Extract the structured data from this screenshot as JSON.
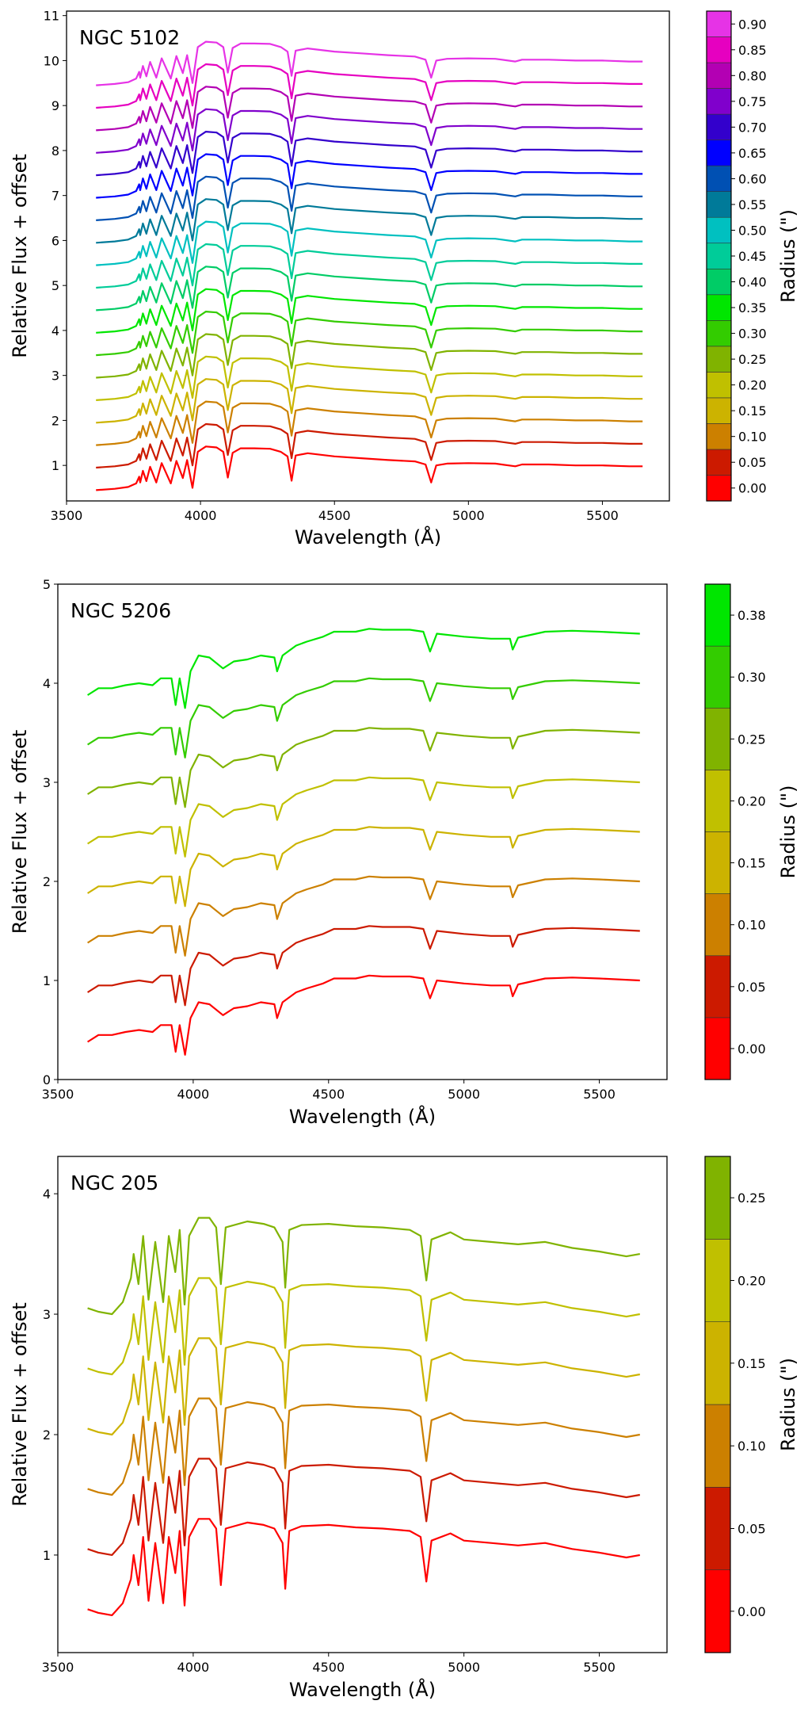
{
  "chart_data": [
    {
      "type": "line",
      "title": "NGC 5102",
      "xlabel": "Wavelength (Å)",
      "ylabel": "Relative Flux + offset",
      "colorbar_label": "Radius (\")",
      "xlim": [
        3500,
        5750
      ],
      "ylim": [
        0.21,
        11.1
      ],
      "xticks": [
        "3500",
        "4000",
        "4500",
        "5000",
        "5500"
      ],
      "yticks": [
        "1",
        "2",
        "3",
        "4",
        "5",
        "6",
        "7",
        "8",
        "9",
        "10",
        "11"
      ],
      "grid": false,
      "template": {
        "x": [
          3610,
          3680,
          3730,
          3760,
          3771,
          3775,
          3785,
          3798,
          3812,
          3835,
          3855,
          3889,
          3910,
          3934,
          3950,
          3970,
          3990,
          4020,
          4060,
          4085,
          4102,
          4120,
          4150,
          4200,
          4260,
          4300,
          4325,
          4340,
          4355,
          4400,
          4500,
          4600,
          4700,
          4800,
          4840,
          4861,
          4880,
          4920,
          5000,
          5100,
          5175,
          5200,
          5300,
          5400,
          5500,
          5600,
          5650
        ],
        "y": [
          0.45,
          0.48,
          0.52,
          0.6,
          0.75,
          0.62,
          0.88,
          0.65,
          0.97,
          0.62,
          1.05,
          0.6,
          1.1,
          0.72,
          1.12,
          0.5,
          1.3,
          1.42,
          1.4,
          1.3,
          0.73,
          1.28,
          1.38,
          1.38,
          1.37,
          1.3,
          1.2,
          0.66,
          1.22,
          1.27,
          1.2,
          1.16,
          1.12,
          1.09,
          1.02,
          0.62,
          1.0,
          1.04,
          1.05,
          1.04,
          0.98,
          1.02,
          1.02,
          1.0,
          1.0,
          0.98,
          0.98
        ]
      },
      "series": [
        {
          "name": "0.00",
          "offset": 0.0,
          "color": "#ff0000"
        },
        {
          "name": "0.05",
          "offset": 0.5,
          "color": "#cc1a00"
        },
        {
          "name": "0.10",
          "offset": 1.0,
          "color": "#cc8000"
        },
        {
          "name": "0.15",
          "offset": 1.5,
          "color": "#ccb300"
        },
        {
          "name": "0.20",
          "offset": 2.0,
          "color": "#c0c000"
        },
        {
          "name": "0.25",
          "offset": 2.5,
          "color": "#80b300"
        },
        {
          "name": "0.30",
          "offset": 3.0,
          "color": "#33cc00"
        },
        {
          "name": "0.35",
          "offset": 3.5,
          "color": "#00e600"
        },
        {
          "name": "0.40",
          "offset": 4.0,
          "color": "#00cc66"
        },
        {
          "name": "0.45",
          "offset": 4.5,
          "color": "#00cc99"
        },
        {
          "name": "0.50",
          "offset": 5.0,
          "color": "#00c0c0"
        },
        {
          "name": "0.55",
          "offset": 5.5,
          "color": "#007a99"
        },
        {
          "name": "0.60",
          "offset": 6.0,
          "color": "#0050b3"
        },
        {
          "name": "0.65",
          "offset": 6.5,
          "color": "#0000ff"
        },
        {
          "name": "0.70",
          "offset": 7.0,
          "color": "#3300cc"
        },
        {
          "name": "0.75",
          "offset": 7.5,
          "color": "#8000cc"
        },
        {
          "name": "0.80",
          "offset": 8.0,
          "color": "#b300b3"
        },
        {
          "name": "0.85",
          "offset": 8.5,
          "color": "#e600c0"
        },
        {
          "name": "0.90",
          "offset": 9.0,
          "color": "#e633e6"
        }
      ]
    },
    {
      "type": "line",
      "title": "NGC 5206",
      "xlabel": "Wavelength (Å)",
      "ylabel": "Relative Flux + offset",
      "colorbar_label": "Radius (\")",
      "xlim": [
        3500,
        5750
      ],
      "ylim": [
        0,
        5
      ],
      "xticks": [
        "3500",
        "4000",
        "4500",
        "5000",
        "5500"
      ],
      "yticks": [
        "0",
        "1",
        "2",
        "3",
        "4",
        "5"
      ],
      "grid": false,
      "template": {
        "x": [
          3610,
          3650,
          3700,
          3750,
          3800,
          3850,
          3880,
          3920,
          3935,
          3950,
          3970,
          3990,
          4020,
          4060,
          4110,
          4150,
          4200,
          4250,
          4300,
          4310,
          4330,
          4380,
          4420,
          4480,
          4520,
          4600,
          4650,
          4700,
          4800,
          4850,
          4875,
          4900,
          5000,
          5100,
          5170,
          5180,
          5200,
          5300,
          5400,
          5500,
          5650
        ],
        "y": [
          0.38,
          0.45,
          0.45,
          0.48,
          0.5,
          0.48,
          0.55,
          0.55,
          0.28,
          0.55,
          0.25,
          0.62,
          0.78,
          0.76,
          0.65,
          0.72,
          0.74,
          0.78,
          0.76,
          0.62,
          0.78,
          0.88,
          0.92,
          0.97,
          1.02,
          1.02,
          1.05,
          1.04,
          1.04,
          1.02,
          0.82,
          1.0,
          0.97,
          0.95,
          0.95,
          0.84,
          0.96,
          1.02,
          1.03,
          1.02,
          1.0
        ]
      },
      "series": [
        {
          "name": "0.00",
          "offset": 0.0,
          "color": "#ff0000"
        },
        {
          "name": "0.05",
          "offset": 0.5,
          "color": "#cc1a00"
        },
        {
          "name": "0.10",
          "offset": 1.0,
          "color": "#cc8000"
        },
        {
          "name": "0.15",
          "offset": 1.5,
          "color": "#ccb300"
        },
        {
          "name": "0.20",
          "offset": 2.0,
          "color": "#c0c000"
        },
        {
          "name": "0.25",
          "offset": 2.5,
          "color": "#80b300"
        },
        {
          "name": "0.30",
          "offset": 3.0,
          "color": "#33cc00"
        },
        {
          "name": "0.38",
          "offset": 3.5,
          "color": "#00e600"
        }
      ]
    },
    {
      "type": "line",
      "title": "NGC 205",
      "xlabel": "Wavelength (Å)",
      "ylabel": "Relative Flux + offset",
      "colorbar_label": "Radius (\")",
      "xlim": [
        3500,
        5750
      ],
      "ylim": [
        0.19,
        4.31
      ],
      "xticks": [
        "3500",
        "4000",
        "4500",
        "5000",
        "5500"
      ],
      "yticks": [
        "1",
        "2",
        "3",
        "4"
      ],
      "grid": false,
      "template": {
        "x": [
          3610,
          3650,
          3700,
          3740,
          3770,
          3780,
          3798,
          3815,
          3835,
          3860,
          3889,
          3910,
          3934,
          3950,
          3968,
          3985,
          4020,
          4060,
          4085,
          4102,
          4120,
          4200,
          4260,
          4300,
          4330,
          4340,
          4355,
          4400,
          4500,
          4600,
          4700,
          4800,
          4840,
          4861,
          4880,
          4950,
          5000,
          5100,
          5200,
          5300,
          5400,
          5500,
          5600,
          5650
        ],
        "y": [
          0.55,
          0.52,
          0.5,
          0.6,
          0.8,
          1.0,
          0.75,
          1.15,
          0.62,
          1.1,
          0.6,
          1.15,
          0.85,
          1.2,
          0.58,
          1.15,
          1.3,
          1.3,
          1.22,
          0.75,
          1.22,
          1.27,
          1.25,
          1.22,
          1.1,
          0.72,
          1.2,
          1.24,
          1.25,
          1.23,
          1.22,
          1.2,
          1.15,
          0.78,
          1.12,
          1.18,
          1.12,
          1.1,
          1.08,
          1.1,
          1.05,
          1.02,
          0.98,
          1.0
        ]
      },
      "series": [
        {
          "name": "0.00",
          "offset": 0.0,
          "color": "#ff0000"
        },
        {
          "name": "0.05",
          "offset": 0.5,
          "color": "#cc1a00"
        },
        {
          "name": "0.10",
          "offset": 1.0,
          "color": "#cc8000"
        },
        {
          "name": "0.15",
          "offset": 1.5,
          "color": "#ccb300"
        },
        {
          "name": "0.20",
          "offset": 2.0,
          "color": "#c0c000"
        },
        {
          "name": "0.25",
          "offset": 2.5,
          "color": "#80b300"
        }
      ]
    }
  ]
}
